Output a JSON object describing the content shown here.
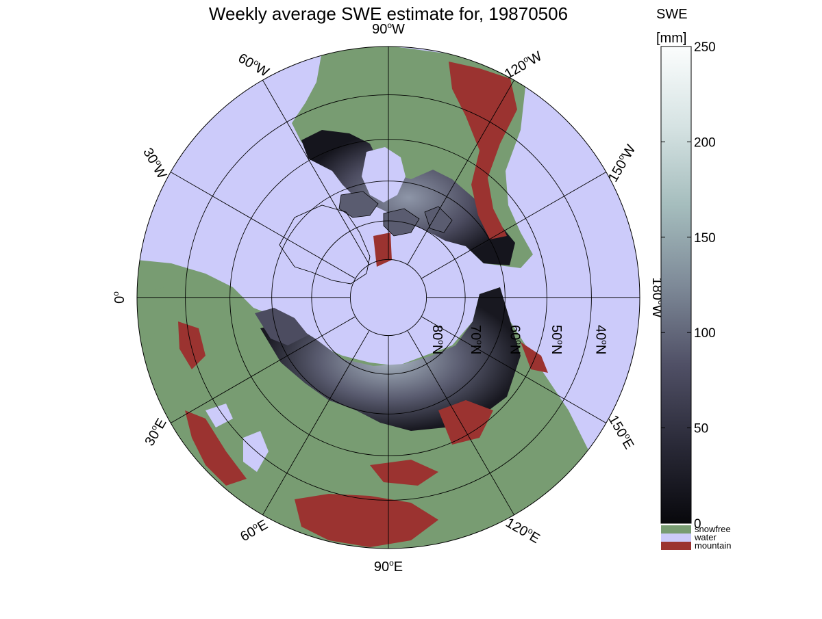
{
  "title": "Weekly average SWE estimate for, 19870506",
  "colorbar": {
    "label_line1": "SWE",
    "label_line2": "[mm]",
    "ticks": [
      "250",
      "200",
      "150",
      "100",
      "50",
      "0"
    ],
    "tick_values": [
      250,
      200,
      150,
      100,
      50,
      0
    ],
    "range": [
      0,
      250
    ],
    "gradient": [
      "#08080c",
      "#2a2a38",
      "#505066",
      "#7e8a98",
      "#a5bdbd",
      "#d6e3e3",
      "#fbfdfd"
    ]
  },
  "legend": [
    {
      "label": "snowfree",
      "color": "#789c72"
    },
    {
      "label": "water",
      "color": "#cccbfa"
    },
    {
      "label": "mountain",
      "color": "#9b3330"
    }
  ],
  "map": {
    "projection": "north polar stereographic",
    "background": "#cccbfa",
    "longitude_labels": [
      {
        "deg": "90",
        "hemi": "W",
        "lon": -90
      },
      {
        "deg": "120",
        "hemi": "W",
        "lon": -120
      },
      {
        "deg": "150",
        "hemi": "W",
        "lon": -150
      },
      {
        "deg": "180",
        "hemi": "W",
        "lon": 180
      },
      {
        "deg": "150",
        "hemi": "E",
        "lon": 150
      },
      {
        "deg": "120",
        "hemi": "E",
        "lon": 120
      },
      {
        "deg": "90",
        "hemi": "E",
        "lon": 90
      },
      {
        "deg": "60",
        "hemi": "E",
        "lon": 60
      },
      {
        "deg": "30",
        "hemi": "E",
        "lon": 30
      },
      {
        "deg": "0",
        "hemi": "",
        "lon": 0
      },
      {
        "deg": "30",
        "hemi": "W",
        "lon": -30
      },
      {
        "deg": "60",
        "hemi": "W",
        "lon": -60
      }
    ],
    "latitude_labels": [
      {
        "deg": "80",
        "hemi": "N",
        "lat": 80
      },
      {
        "deg": "70",
        "hemi": "N",
        "lat": 70
      },
      {
        "deg": "60",
        "hemi": "N",
        "lat": 60
      },
      {
        "deg": "50",
        "hemi": "N",
        "lat": 50
      },
      {
        "deg": "40",
        "hemi": "N",
        "lat": 40
      }
    ]
  }
}
